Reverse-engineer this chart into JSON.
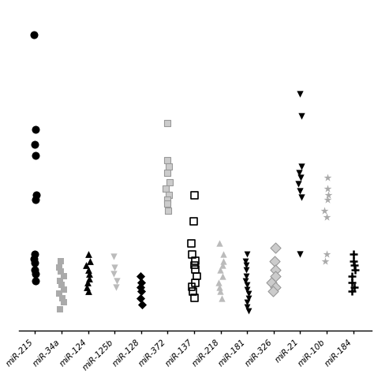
{
  "categories": [
    "miR-215",
    "miR-34a",
    "miR-124",
    "miR-125b",
    "miR-128",
    "miR-372",
    "miR-137",
    "miR-218",
    "miR-181",
    "miR-326",
    "miR-21",
    "miR-10b",
    "miR-184"
  ],
  "series": [
    {
      "x_base": 0,
      "marker": "o",
      "facecolor": "#000000",
      "edgecolor": "#000000",
      "ms": 52,
      "lw": 0,
      "ys": [
        15.5,
        11.2,
        10.5,
        10.0,
        8.2,
        8.0,
        5.5,
        5.3,
        5.1,
        4.8,
        4.6,
        4.3
      ],
      "jitter": 0.04
    },
    {
      "x_base": 1,
      "marker": "s",
      "facecolor": "#aaaaaa",
      "edgecolor": "#aaaaaa",
      "ms": 30,
      "lw": 0,
      "ys": [
        5.2,
        4.9,
        4.7,
        4.5,
        4.3,
        4.1,
        3.9,
        3.7,
        3.5,
        3.3,
        3.0
      ],
      "jitter": 0.1
    },
    {
      "x_base": 2,
      "marker": "^",
      "facecolor": "#000000",
      "edgecolor": "#000000",
      "ms": 40,
      "lw": 0,
      "ys": [
        5.5,
        5.2,
        5.0,
        4.8,
        4.6,
        4.4,
        4.2,
        4.0,
        3.8
      ],
      "jitter": 0.1
    },
    {
      "x_base": 3,
      "marker": "v",
      "facecolor": "#bbbbbb",
      "edgecolor": "#bbbbbb",
      "ms": 36,
      "lw": 0,
      "ys": [
        5.4,
        4.9,
        4.6,
        4.3,
        4.0
      ],
      "jitter": 0.1
    },
    {
      "x_base": 4,
      "marker": "D",
      "facecolor": "#000000",
      "edgecolor": "#000000",
      "ms": 32,
      "lw": 0,
      "ys": [
        4.5,
        4.2,
        4.0,
        3.8,
        3.5,
        3.2
      ],
      "jitter": 0.08
    },
    {
      "x_base": 5,
      "marker": "s",
      "facecolor": "#cccccc",
      "edgecolor": "#999999",
      "ms": 28,
      "lw": 0.8,
      "ys": [
        11.5,
        9.8,
        9.5,
        9.2,
        8.8,
        8.5,
        8.2,
        8.0,
        7.8,
        7.5
      ],
      "jitter": 0.1
    },
    {
      "x_base": 6,
      "marker": "s",
      "facecolor": "none",
      "edgecolor": "#000000",
      "ms": 40,
      "lw": 1.2,
      "ys": [
        8.2,
        7.0,
        6.0,
        5.5,
        5.2,
        5.0,
        4.8,
        4.5,
        4.2,
        4.0,
        3.8,
        3.5
      ],
      "jitter": 0.1
    },
    {
      "x_base": 7,
      "marker": "^",
      "facecolor": "#bbbbbb",
      "edgecolor": "#bbbbbb",
      "ms": 36,
      "lw": 0,
      "ys": [
        6.0,
        5.5,
        5.2,
        5.0,
        4.8,
        4.5,
        4.2,
        4.0,
        3.8,
        3.5
      ],
      "jitter": 0.1
    },
    {
      "x_base": 8,
      "marker": "v",
      "facecolor": "#000000",
      "edgecolor": "#000000",
      "ms": 32,
      "lw": 0,
      "ys": [
        5.5,
        5.2,
        5.0,
        4.8,
        4.5,
        4.3,
        4.1,
        3.9,
        3.7,
        3.5,
        3.3,
        3.1,
        2.9
      ],
      "jitter": 0.1
    },
    {
      "x_base": 9,
      "marker": "D",
      "facecolor": "#cccccc",
      "edgecolor": "#999999",
      "ms": 44,
      "lw": 0.8,
      "ys": [
        5.8,
        5.2,
        4.8,
        4.5,
        4.2,
        4.0,
        3.8
      ],
      "jitter": 0.08
    },
    {
      "x_base": 10,
      "marker": "v",
      "facecolor": "#000000",
      "edgecolor": "#000000",
      "ms": 36,
      "lw": 0,
      "ys": [
        12.8,
        11.8,
        9.5,
        9.2,
        9.0,
        8.7,
        8.4,
        8.1,
        5.5
      ],
      "jitter": 0.08
    },
    {
      "x_base": 11,
      "marker": "*",
      "facecolor": "#aaaaaa",
      "edgecolor": "#aaaaaa",
      "ms": 55,
      "lw": 0,
      "ys": [
        9.0,
        8.5,
        8.2,
        8.0,
        7.5,
        7.2,
        5.5,
        5.2
      ],
      "jitter": 0.08
    },
    {
      "x_base": 12,
      "marker": "+",
      "facecolor": "#000000",
      "edgecolor": "#000000",
      "ms": 55,
      "lw": 1.8,
      "ys": [
        5.5,
        5.2,
        5.0,
        4.8,
        4.5,
        4.2,
        4.0,
        3.8
      ],
      "jitter": 0.08
    }
  ],
  "xlim": [
    -0.5,
    13.0
  ],
  "ylim": [
    2.0,
    17.0
  ],
  "figsize": [
    4.74,
    4.74
  ],
  "dpi": 100,
  "label_fontsize": 7.5,
  "x_label_rotation": 45
}
